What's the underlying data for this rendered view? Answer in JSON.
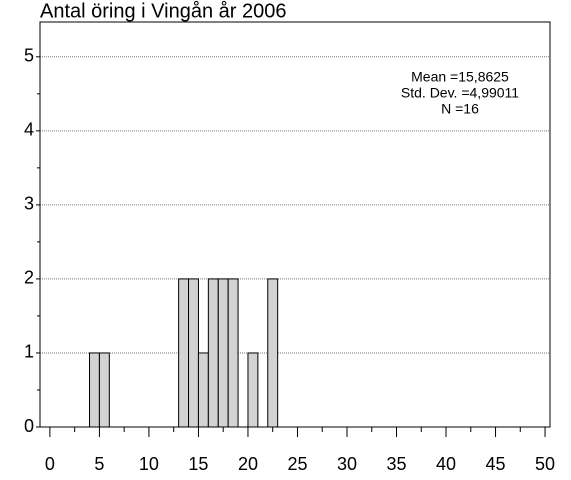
{
  "chart_data": {
    "type": "histogram",
    "title": "Antal öring i Vingån år 2006",
    "bins": [
      4,
      5,
      6,
      7,
      8,
      9,
      10,
      11,
      12,
      13,
      14,
      15,
      16,
      17,
      18,
      19,
      20,
      21,
      22,
      23
    ],
    "values": [
      1,
      1,
      0,
      0,
      0,
      0,
      0,
      0,
      0,
      2,
      2,
      1,
      2,
      2,
      2,
      0,
      1,
      0,
      2
    ],
    "color": "#d3d3d3",
    "xlim": [
      -1,
      50.5
    ],
    "xticks": [
      0,
      5,
      10,
      15,
      20,
      25,
      30,
      35,
      40,
      45,
      50
    ],
    "ylim": [
      0,
      5.47
    ],
    "yticks": [
      0,
      1,
      2,
      3,
      4,
      5
    ],
    "grid": true,
    "annotations": [
      "Mean =15,8625",
      "Std. Dev. =4,99011",
      "N =16"
    ]
  }
}
